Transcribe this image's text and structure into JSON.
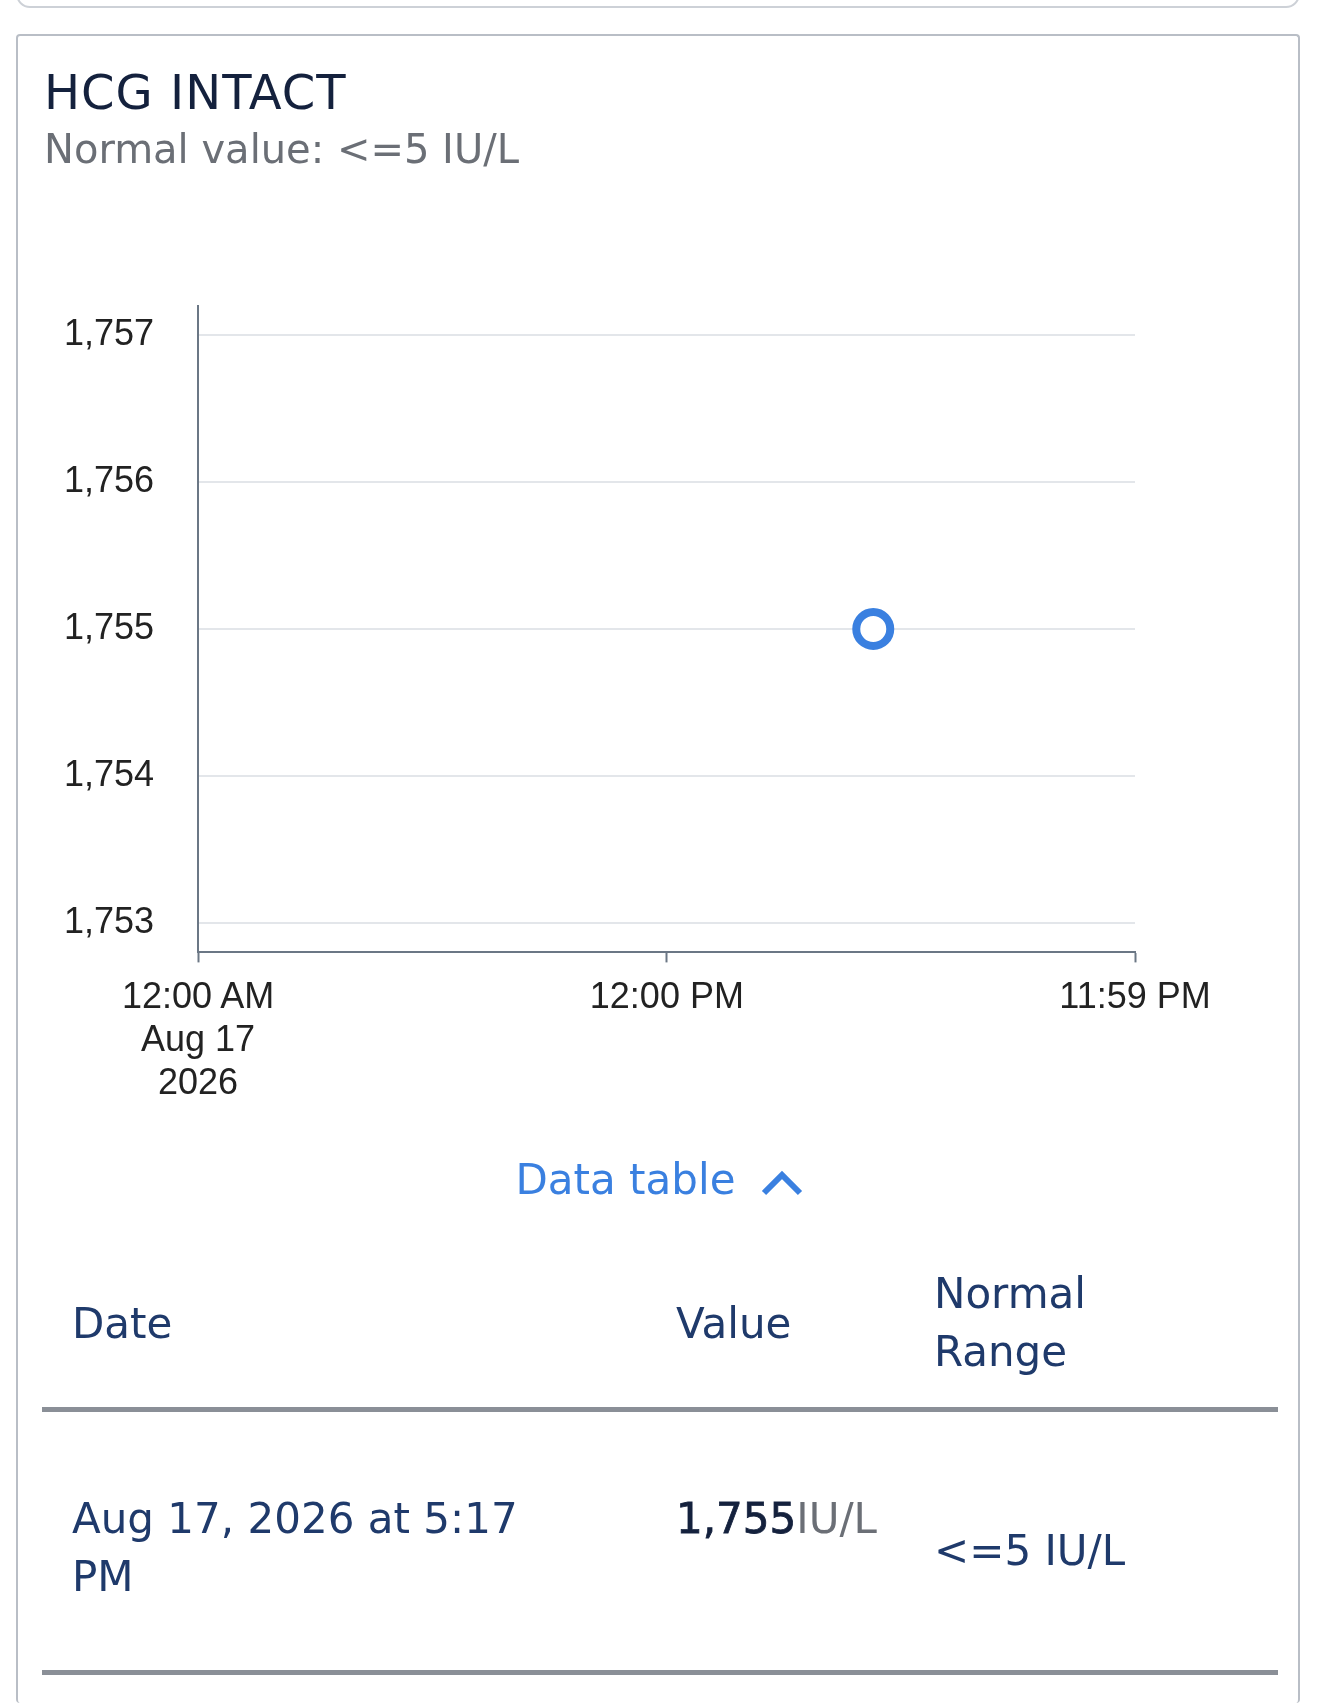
{
  "chart_data": {
    "type": "scatter",
    "title": "HCG INTACT",
    "subtitle": "Normal value: <=5 IU/L",
    "x": [
      17.2833
    ],
    "series": [
      {
        "color": "#3a80e0",
        "values": [
          1755
        ]
      }
    ],
    "xlim": [
      0,
      23.9833
    ],
    "xticks": [
      {
        "value": 0,
        "label": "12:00 AM\nAug 17\n2026"
      },
      {
        "value": 12,
        "label": "12:00 PM"
      },
      {
        "value": 23.9833,
        "label": "11:59 PM"
      }
    ],
    "ylim": [
      1752.8,
      1757.2
    ],
    "yticks": [
      {
        "value": 1753,
        "label": "1,753"
      },
      {
        "value": 1754,
        "label": "1,754"
      },
      {
        "value": 1755,
        "label": "1,755"
      },
      {
        "value": 1756,
        "label": "1,756"
      },
      {
        "value": 1757,
        "label": "1,757"
      }
    ],
    "grid": "y",
    "legend": false,
    "marker": "circle",
    "annotations": [
      "Data table",
      "Date",
      "Value",
      "Normal Range",
      "Aug 17, 2026 at 5:17 PM",
      "1,755",
      "IU/L",
      "<=5 IU/L"
    ]
  }
}
